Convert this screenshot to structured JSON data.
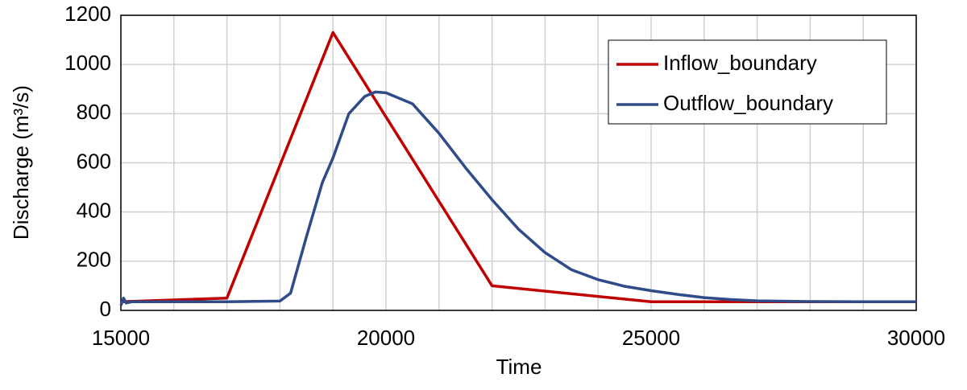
{
  "chart_data": {
    "type": "line",
    "xlabel": "Time",
    "ylabel": "Discharge (m³/s)",
    "xlim": [
      15000,
      30000
    ],
    "xticks": [
      15000,
      20000,
      25000,
      30000
    ],
    "xgrid": [
      15000,
      16000,
      17000,
      18000,
      19000,
      20000,
      21000,
      22000,
      23000,
      24000,
      25000,
      26000,
      27000,
      28000,
      29000,
      30000
    ],
    "ylim": [
      0,
      1200
    ],
    "yticks": [
      0,
      200,
      400,
      600,
      800,
      1000,
      1200
    ],
    "grid": true,
    "legend": "upper right",
    "series": [
      {
        "name": "Inflow_boundary",
        "color": "#c00000",
        "x": [
          15000,
          17000,
          19000,
          22000,
          25000,
          30000
        ],
        "values": [
          35,
          50,
          1130,
          100,
          35,
          35
        ]
      },
      {
        "name": "Outflow_boundary",
        "color": "#2f4b8a",
        "x": [
          15000,
          15050,
          15100,
          15200,
          16000,
          17000,
          18000,
          18200,
          18500,
          18800,
          19000,
          19300,
          19600,
          19800,
          20000,
          20500,
          21000,
          21500,
          22000,
          22500,
          23000,
          23500,
          24000,
          24500,
          25000,
          25500,
          26000,
          26500,
          27000,
          28000,
          29000,
          30000
        ],
        "values": [
          20,
          50,
          30,
          35,
          35,
          35,
          38,
          70,
          300,
          520,
          620,
          800,
          870,
          888,
          885,
          840,
          720,
          580,
          450,
          330,
          235,
          165,
          125,
          98,
          80,
          65,
          52,
          44,
          39,
          36,
          35,
          35
        ]
      }
    ]
  }
}
